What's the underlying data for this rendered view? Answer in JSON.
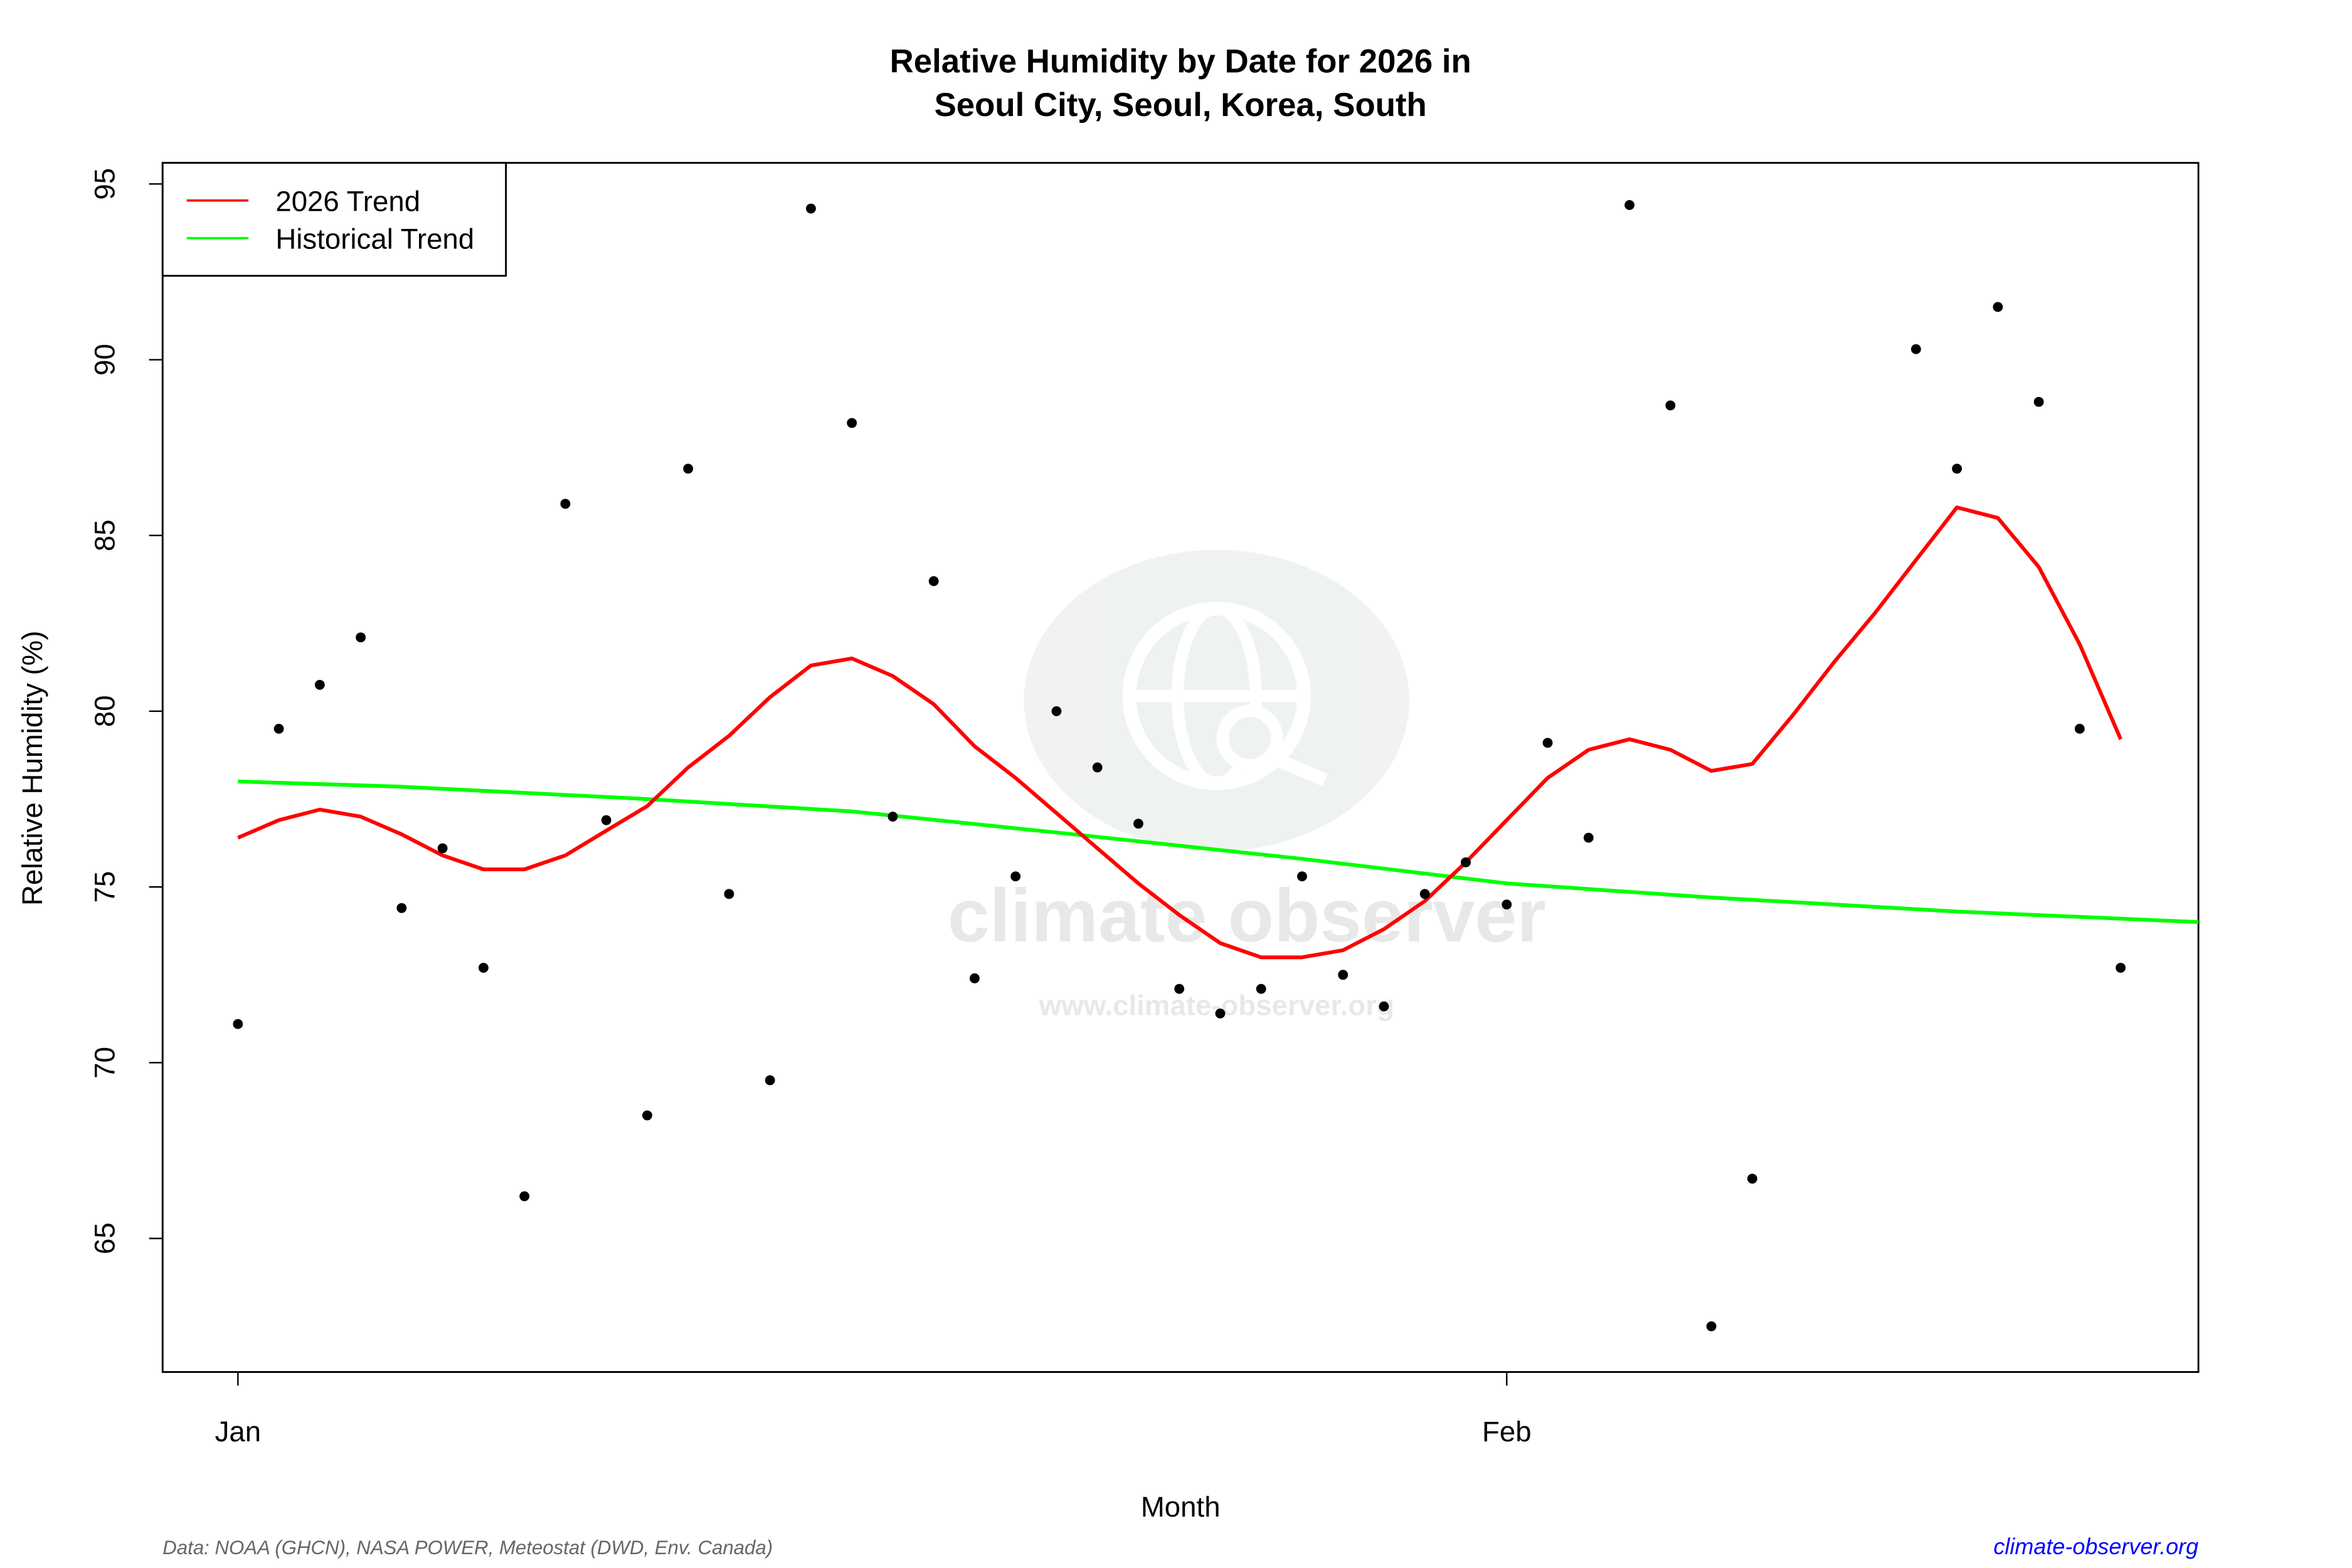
{
  "chart_data": {
    "type": "scatter",
    "title_line1": "Relative Humidity by Date for 2026 in",
    "title_line2": "Seoul City, Seoul, Korea, South",
    "xlabel": "Month",
    "ylabel": "Relative Humidity (%)",
    "ylim": [
      61.2,
      95.6
    ],
    "xlim_days": [
      -0.84,
      48.9
    ],
    "yticks": [
      65,
      70,
      75,
      80,
      85,
      90,
      95
    ],
    "xticks": [
      {
        "day": 1,
        "label": "Jan"
      },
      {
        "day": 32,
        "label": "Feb"
      }
    ],
    "grid": false,
    "legend_position": "top-left",
    "legend": [
      {
        "label": "2026 Trend",
        "color": "#ff0000"
      },
      {
        "label": "Historical Trend",
        "color": "#00ff00"
      }
    ],
    "points": {
      "color": "#000000",
      "x_day": [
        1,
        2,
        3,
        4,
        5,
        6,
        7,
        8,
        9,
        10,
        11,
        12,
        13,
        14,
        15,
        16,
        17,
        18,
        19,
        20,
        21,
        22,
        23,
        24,
        25,
        26,
        27,
        28,
        29,
        30,
        31,
        32,
        33,
        34,
        35,
        36,
        37,
        38,
        42,
        43,
        44,
        45,
        46,
        47
      ],
      "y": [
        71.1,
        79.5,
        80.75,
        82.1,
        74.4,
        76.1,
        72.7,
        66.2,
        85.9,
        76.9,
        68.5,
        86.9,
        74.8,
        69.5,
        94.3,
        88.2,
        77.0,
        83.7,
        72.4,
        75.3,
        80.0,
        78.4,
        76.8,
        72.1,
        71.4,
        72.1,
        75.3,
        72.5,
        71.6,
        74.8,
        75.7,
        74.5,
        79.1,
        76.4,
        94.4,
        88.7,
        62.5,
        66.7,
        90.3,
        86.9,
        91.5,
        88.8,
        79.5,
        72.7
      ]
    },
    "series": [
      {
        "name": "2026 Trend",
        "color": "#ff0000",
        "x_day": [
          1,
          2,
          3,
          4,
          5,
          6,
          7,
          8,
          9,
          10,
          11,
          12,
          13,
          14,
          15,
          16,
          17,
          18,
          19,
          20,
          21,
          22,
          23,
          24,
          25,
          26,
          27,
          28,
          29,
          30,
          31,
          32,
          33,
          34,
          35,
          36,
          37,
          38,
          39,
          40,
          41,
          42,
          43,
          44,
          45,
          46,
          47
        ],
        "y": [
          76.4,
          76.9,
          77.2,
          77.0,
          76.5,
          75.9,
          75.5,
          75.5,
          75.9,
          76.6,
          77.3,
          78.4,
          79.3,
          80.4,
          81.3,
          81.5,
          81.0,
          80.2,
          79.0,
          78.1,
          77.1,
          76.1,
          75.1,
          74.2,
          73.4,
          73.0,
          73.0,
          73.2,
          73.8,
          74.6,
          75.7,
          76.9,
          78.1,
          78.9,
          79.2,
          78.9,
          78.3,
          78.5,
          79.9,
          81.4,
          82.8,
          84.3,
          85.8,
          85.5,
          84.1,
          81.9,
          79.2
        ]
      },
      {
        "name": "Historical Trend",
        "color": "#00ff00",
        "x_day": [
          1,
          5,
          11,
          16,
          21,
          27,
          32,
          37,
          43,
          48.9
        ],
        "y": [
          78.0,
          77.85,
          77.5,
          77.15,
          76.55,
          75.8,
          75.1,
          74.7,
          74.3,
          74.0
        ]
      }
    ],
    "watermark": {
      "text": "climate observer",
      "url_text": "www.climate-observer.org"
    }
  },
  "footer": {
    "source": "Data: NOAA (GHCN), NASA POWER, Meteostat (DWD, Env. Canada)",
    "site": "climate-observer.org",
    "site_color": "#0000ff"
  }
}
